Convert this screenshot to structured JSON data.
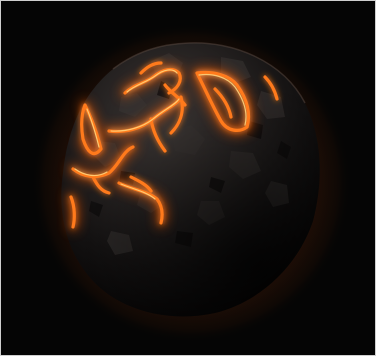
{
  "image": {
    "subject": "molten-rock-sphere",
    "background_color": "#050505",
    "rock_color": "#1c1917",
    "lava_color": "#ff7a1a",
    "lava_core_color": "#ffd27a",
    "glow_color": "#ff5a0a"
  }
}
